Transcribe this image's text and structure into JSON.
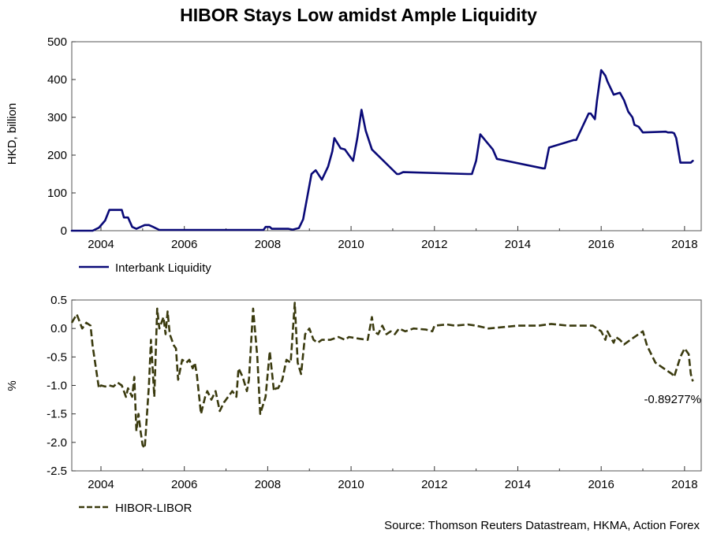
{
  "title": "HIBOR Stays Low amidst Ample Liquidity",
  "source": "Source: Thomson Reuters Datastream, HKMA, Action Forex",
  "colors": {
    "liquidity": "#0a0a78",
    "spread": "#3a3a0e"
  },
  "chart_data": [
    {
      "type": "line",
      "ylabel": "HKD, billion",
      "xlabel": "",
      "ylim": [
        0,
        500
      ],
      "yticks": [
        "500",
        "400",
        "300",
        "200",
        "100",
        "0"
      ],
      "xlim": [
        2003.3,
        2018.4
      ],
      "xticks": [
        "2004",
        "2006",
        "2008",
        "2010",
        "2012",
        "2014",
        "2016",
        "2018"
      ],
      "legend": {
        "label": "Interbank Liquidity",
        "placement": "bottom-left"
      },
      "series": [
        {
          "name": "Interbank Liquidity",
          "x": [
            2003.3,
            2003.8,
            2003.95,
            2004.1,
            2004.2,
            2004.25,
            2004.5,
            2004.55,
            2004.65,
            2004.75,
            2004.85,
            2004.95,
            2005.05,
            2005.15,
            2005.25,
            2005.4,
            2007.9,
            2007.95,
            2008.05,
            2008.1,
            2008.25,
            2008.5,
            2008.6,
            2008.75,
            2008.85,
            2008.95,
            2009.05,
            2009.15,
            2009.3,
            2009.45,
            2009.55,
            2009.6,
            2009.75,
            2009.85,
            2009.95,
            2010.05,
            2010.15,
            2010.25,
            2010.35,
            2010.5,
            2011.1,
            2011.15,
            2011.25,
            2012.8,
            2012.9,
            2013.0,
            2013.1,
            2013.25,
            2013.4,
            2013.5,
            2014.6,
            2014.65,
            2014.75,
            2015.35,
            2015.4,
            2015.7,
            2015.75,
            2015.85,
            2015.9,
            2016.0,
            2016.1,
            2016.15,
            2016.3,
            2016.45,
            2016.55,
            2016.65,
            2016.75,
            2016.8,
            2016.9,
            2017.0,
            2017.55,
            2017.6,
            2017.7,
            2017.75,
            2017.8,
            2017.9,
            2018.1,
            2018.15,
            2018.2
          ],
          "values": [
            0,
            0,
            8,
            27,
            55,
            55,
            55,
            35,
            35,
            10,
            5,
            10,
            15,
            15,
            10,
            2,
            2,
            10,
            10,
            5,
            5,
            5,
            3,
            7,
            30,
            90,
            150,
            160,
            135,
            170,
            210,
            245,
            218,
            215,
            200,
            185,
            245,
            320,
            265,
            215,
            150,
            150,
            155,
            150,
            150,
            185,
            255,
            235,
            215,
            190,
            165,
            165,
            220,
            240,
            240,
            310,
            310,
            295,
            345,
            425,
            410,
            395,
            360,
            365,
            345,
            315,
            300,
            280,
            275,
            260,
            262,
            260,
            260,
            258,
            245,
            180,
            180,
            180,
            185
          ]
        }
      ]
    },
    {
      "type": "line",
      "ylabel": "%",
      "xlabel": "",
      "ylim": [
        -2.5,
        0.5
      ],
      "yticks": [
        "0.5",
        "0.0",
        "-0.5",
        "-1.0",
        "-1.5",
        "-2.0",
        "-2.5"
      ],
      "xlim": [
        2003.3,
        2018.4
      ],
      "xticks": [
        "2004",
        "2006",
        "2008",
        "2010",
        "2012",
        "2014",
        "2016",
        "2018"
      ],
      "legend": {
        "label": "HIBOR-LIBOR",
        "placement": "bottom-left"
      },
      "annotation": "-0.89277%",
      "series": [
        {
          "name": "HIBOR-LIBOR",
          "x": [
            2003.3,
            2003.42,
            2003.55,
            2003.65,
            2003.75,
            2003.8,
            2003.95,
            2004.0,
            2004.1,
            2004.2,
            2004.3,
            2004.4,
            2004.5,
            2004.6,
            2004.65,
            2004.75,
            2004.8,
            2004.85,
            2004.9,
            2004.95,
            2005.0,
            2005.05,
            2005.15,
            2005.2,
            2005.28,
            2005.35,
            2005.4,
            2005.5,
            2005.55,
            2005.6,
            2005.65,
            2005.75,
            2005.8,
            2005.85,
            2005.95,
            2006.05,
            2006.12,
            2006.2,
            2006.25,
            2006.3,
            2006.4,
            2006.5,
            2006.55,
            2006.65,
            2006.75,
            2006.85,
            2006.95,
            2007.05,
            2007.15,
            2007.25,
            2007.3,
            2007.4,
            2007.5,
            2007.55,
            2007.65,
            2007.75,
            2007.82,
            2007.95,
            2008.05,
            2008.15,
            2008.2,
            2008.25,
            2008.35,
            2008.45,
            2008.55,
            2008.65,
            2008.72,
            2008.8,
            2008.9,
            2009.0,
            2009.1,
            2009.2,
            2009.3,
            2009.5,
            2009.7,
            2009.85,
            2009.95,
            2010.2,
            2010.4,
            2010.5,
            2010.55,
            2010.65,
            2010.75,
            2010.85,
            2010.95,
            2011.05,
            2011.15,
            2011.3,
            2011.5,
            2011.8,
            2011.95,
            2012.0,
            2012.3,
            2012.5,
            2012.8,
            2013.0,
            2013.3,
            2014.0,
            2014.5,
            2014.8,
            2015.2,
            2015.8,
            2015.9,
            2016.0,
            2016.1,
            2016.15,
            2016.3,
            2016.35,
            2016.45,
            2016.55,
            2016.7,
            2016.9,
            2017.0,
            2017.1,
            2017.3,
            2017.5,
            2017.7,
            2017.75,
            2017.9,
            2018.0,
            2018.1,
            2018.15,
            2018.2
          ],
          "values": [
            0.1,
            0.25,
            0.0,
            0.1,
            0.05,
            -0.3,
            -1.05,
            -1.0,
            -1.02,
            -1.0,
            -1.02,
            -0.95,
            -1.0,
            -1.2,
            -1.05,
            -1.2,
            -0.85,
            -1.8,
            -1.5,
            -1.8,
            -2.05,
            -2.1,
            -1.0,
            -0.2,
            -1.2,
            0.35,
            0.0,
            0.2,
            -0.1,
            0.3,
            -0.1,
            -0.3,
            -0.35,
            -0.9,
            -0.55,
            -0.6,
            -0.55,
            -0.7,
            -0.6,
            -0.8,
            -1.5,
            -1.2,
            -1.1,
            -1.25,
            -1.1,
            -1.45,
            -1.3,
            -1.2,
            -1.1,
            -1.2,
            -0.7,
            -0.85,
            -1.1,
            -0.9,
            0.35,
            -0.5,
            -1.5,
            -1.2,
            -0.4,
            -1.1,
            -1.05,
            -1.05,
            -0.9,
            -0.55,
            -0.6,
            0.45,
            -0.6,
            -0.8,
            -0.1,
            0.0,
            -0.2,
            -0.25,
            -0.2,
            -0.2,
            -0.15,
            -0.2,
            -0.15,
            -0.18,
            -0.2,
            0.2,
            -0.05,
            -0.1,
            0.05,
            -0.1,
            -0.05,
            -0.1,
            0.0,
            -0.05,
            0.0,
            -0.02,
            -0.05,
            0.05,
            0.07,
            0.05,
            0.07,
            0.05,
            0.0,
            0.05,
            0.05,
            0.08,
            0.05,
            0.05,
            0.0,
            -0.05,
            -0.2,
            -0.05,
            -0.25,
            -0.15,
            -0.2,
            -0.28,
            -0.2,
            -0.1,
            -0.05,
            -0.3,
            -0.6,
            -0.7,
            -0.8,
            -0.85,
            -0.5,
            -0.35,
            -0.45,
            -0.8,
            -0.93
          ]
        }
      ]
    }
  ]
}
